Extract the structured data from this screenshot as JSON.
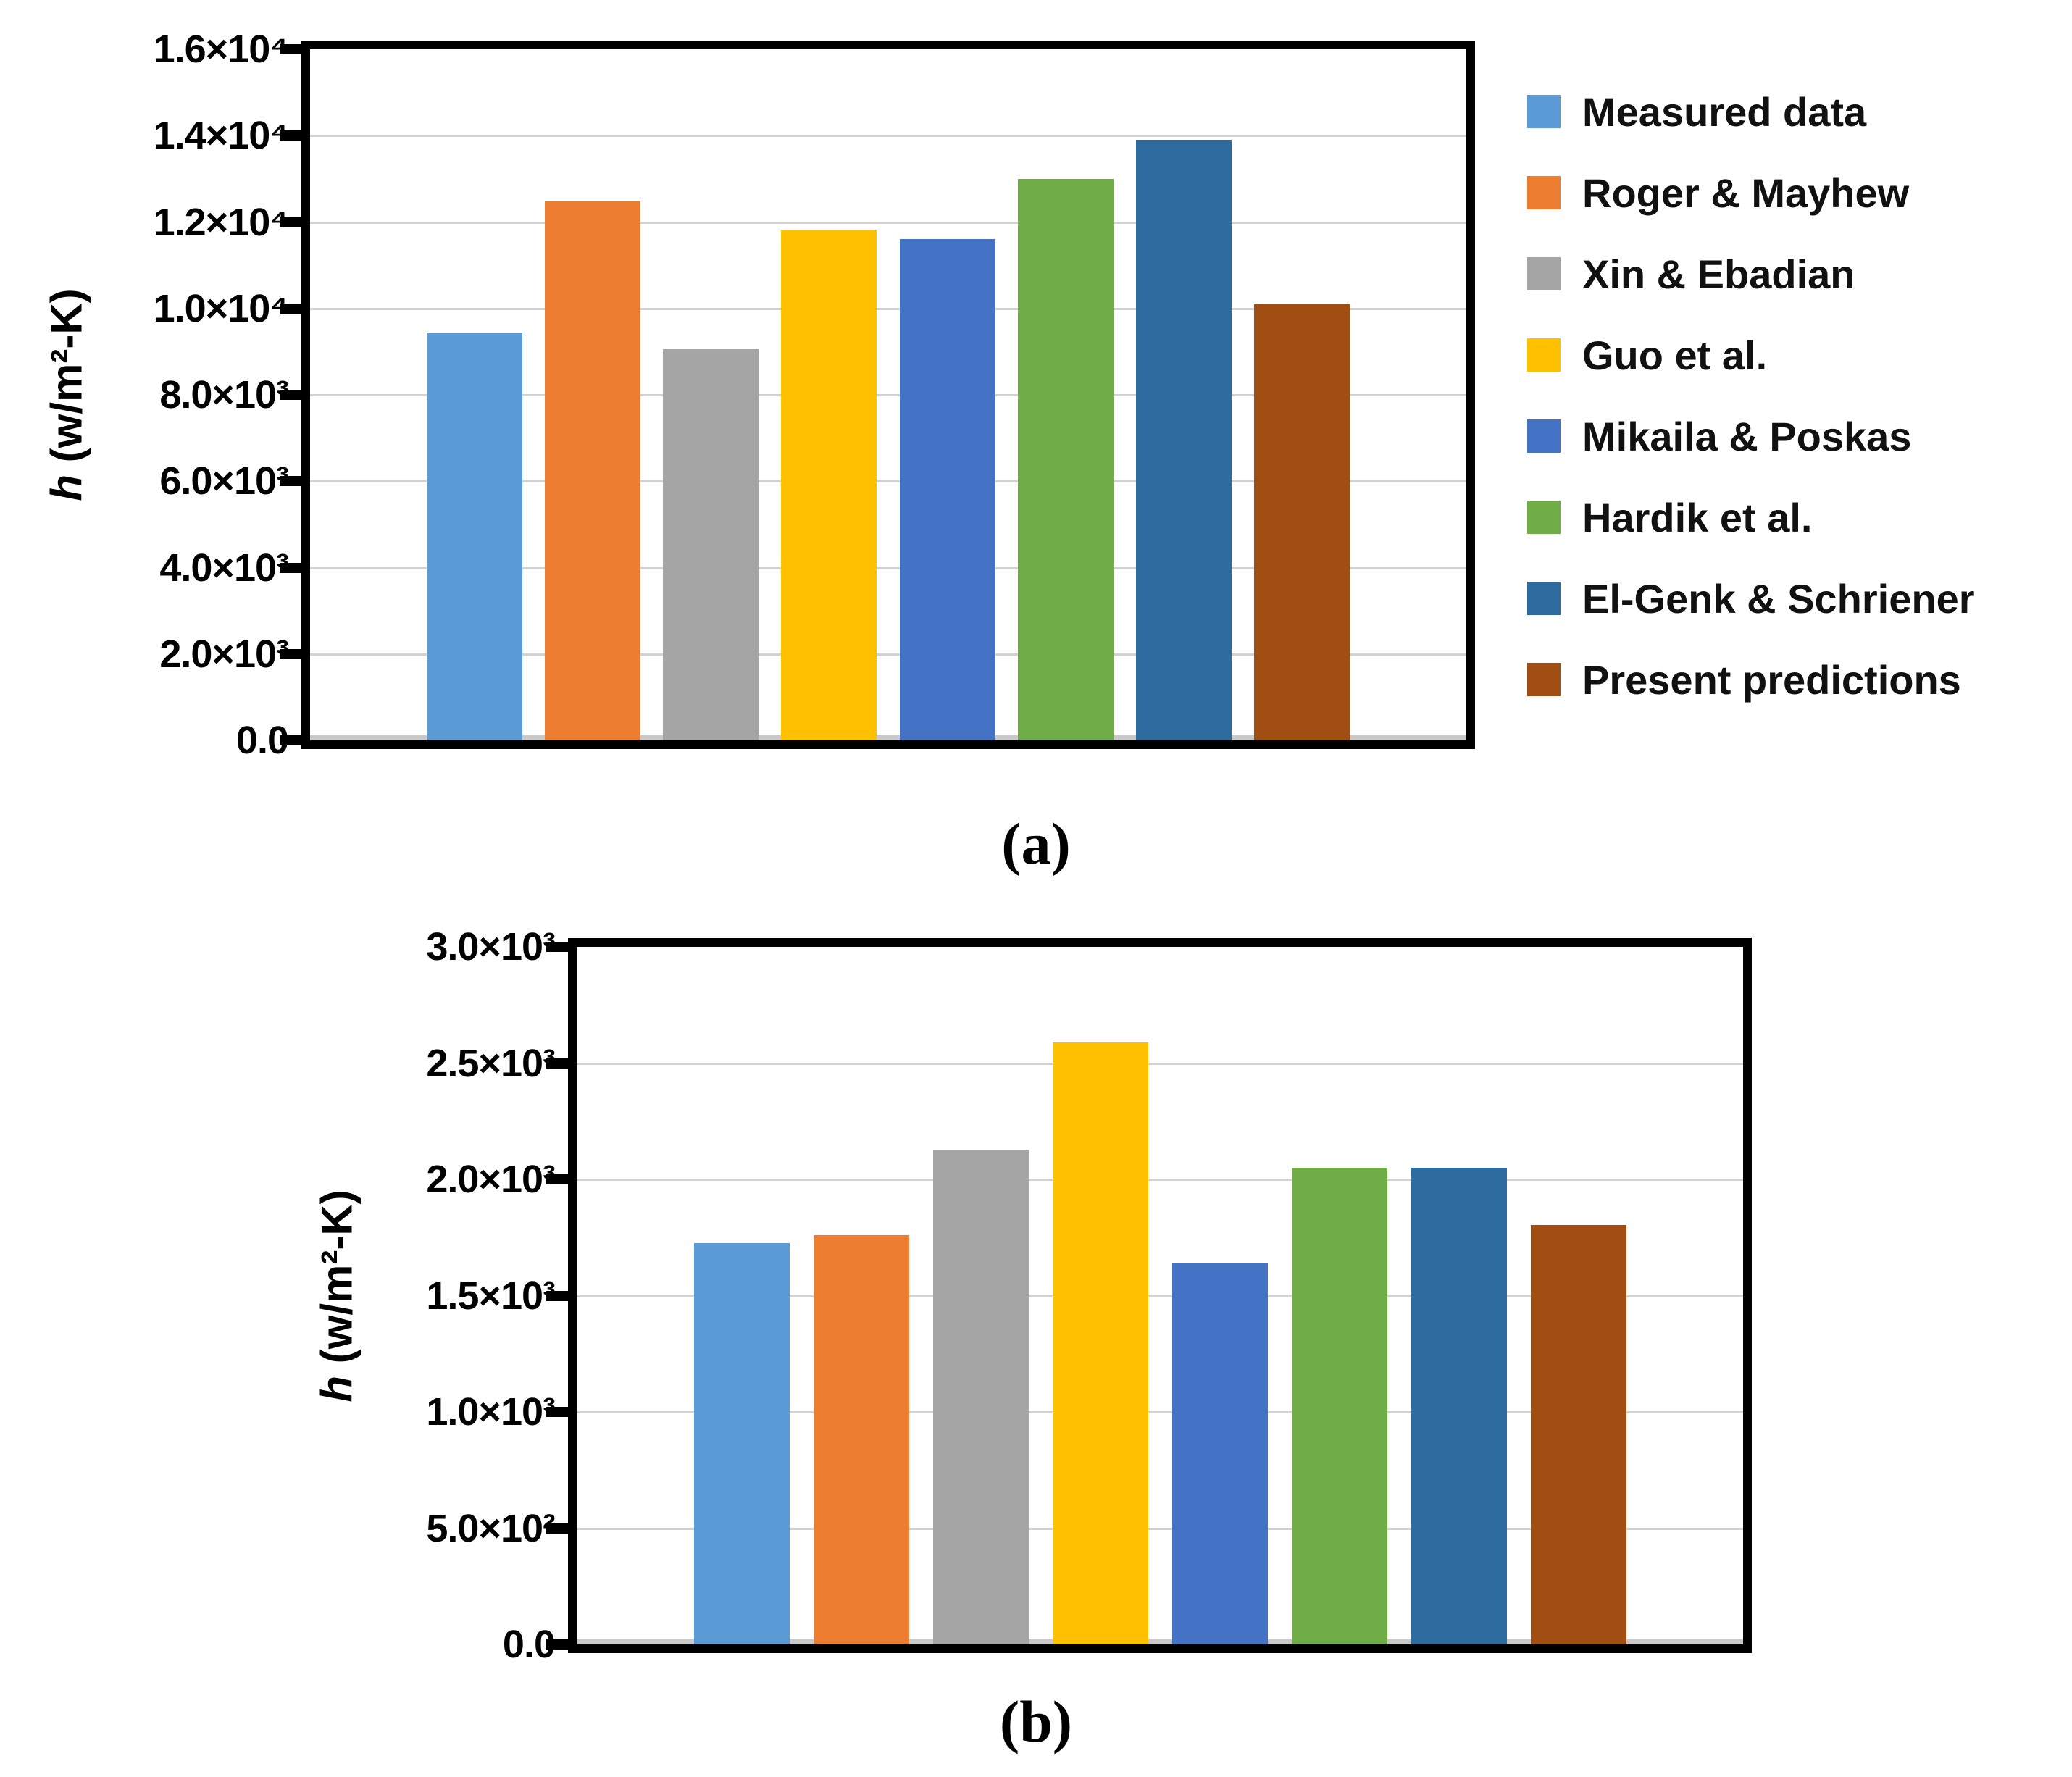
{
  "figure": {
    "panel_a_label": "(a)",
    "panel_b_label": "(b)"
  },
  "legend": {
    "items": [
      {
        "label": "Measured data",
        "color": "#5B9BD5"
      },
      {
        "label": "Roger & Mayhew",
        "color": "#ED7D31"
      },
      {
        "label": "Xin & Ebadian",
        "color": "#A5A5A5"
      },
      {
        "label": "Guo et al.",
        "color": "#FFC000"
      },
      {
        "label": "Mikaila & Poskas",
        "color": "#4472C4"
      },
      {
        "label": "Hardik et al.",
        "color": "#70AD47"
      },
      {
        "label": "El-Genk & Schriener",
        "color": "#2E6B9E"
      },
      {
        "label": "Present predictions",
        "color": "#A04E12"
      }
    ]
  },
  "chart_data": [
    {
      "id": "a",
      "type": "bar",
      "panel_label": "(a)",
      "ylabel": "h (w/m²-K)",
      "ylabel_italic": "h",
      "ylabel_rest": " (w/m²-K)",
      "categories": [
        "Measured data",
        "Roger & Mayhew",
        "Xin & Ebadian",
        "Guo et al.",
        "Mikaila & Poskas",
        "Hardik et al.",
        "El-Genk & Schriener",
        "Present predictions"
      ],
      "values": [
        9450,
        12480,
        9050,
        11820,
        11600,
        13000,
        13900,
        10100
      ],
      "colors": [
        "#5B9BD5",
        "#ED7D31",
        "#A5A5A5",
        "#FFC000",
        "#4472C4",
        "#70AD47",
        "#2E6B9E",
        "#A04E12"
      ],
      "ylim": [
        0,
        16000
      ],
      "ytick_step": 2000,
      "ytick_labels": [
        "0.0",
        "2.0×10³",
        "4.0×10³",
        "6.0×10³",
        "8.0×10³",
        "1.0×10⁴",
        "1.2×10⁴",
        "1.4×10⁴",
        "1.6×10⁴"
      ],
      "grid": true,
      "legend_position": "right"
    },
    {
      "id": "b",
      "type": "bar",
      "panel_label": "(b)",
      "ylabel": "h (w/m²-K)",
      "ylabel_italic": "h",
      "ylabel_rest": " (w/m²-K)",
      "categories": [
        "Measured data",
        "Roger & Mayhew",
        "Xin & Ebadian",
        "Guo et al.",
        "Mikaila & Poskas",
        "Hardik et al.",
        "El-Genk & Schriener",
        "Present predictions"
      ],
      "values": [
        1725,
        1760,
        2125,
        2590,
        1640,
        2050,
        2050,
        1805
      ],
      "colors": [
        "#5B9BD5",
        "#ED7D31",
        "#A5A5A5",
        "#FFC000",
        "#4472C4",
        "#70AD47",
        "#2E6B9E",
        "#A04E12"
      ],
      "ylim": [
        0,
        3000
      ],
      "ytick_step": 500,
      "ytick_labels": [
        "0.0",
        "5.0×10²",
        "1.0×10³",
        "1.5×10³",
        "2.0×10³",
        "2.5×10³",
        "3.0×10³"
      ],
      "grid": true,
      "legend_position": "none"
    }
  ]
}
